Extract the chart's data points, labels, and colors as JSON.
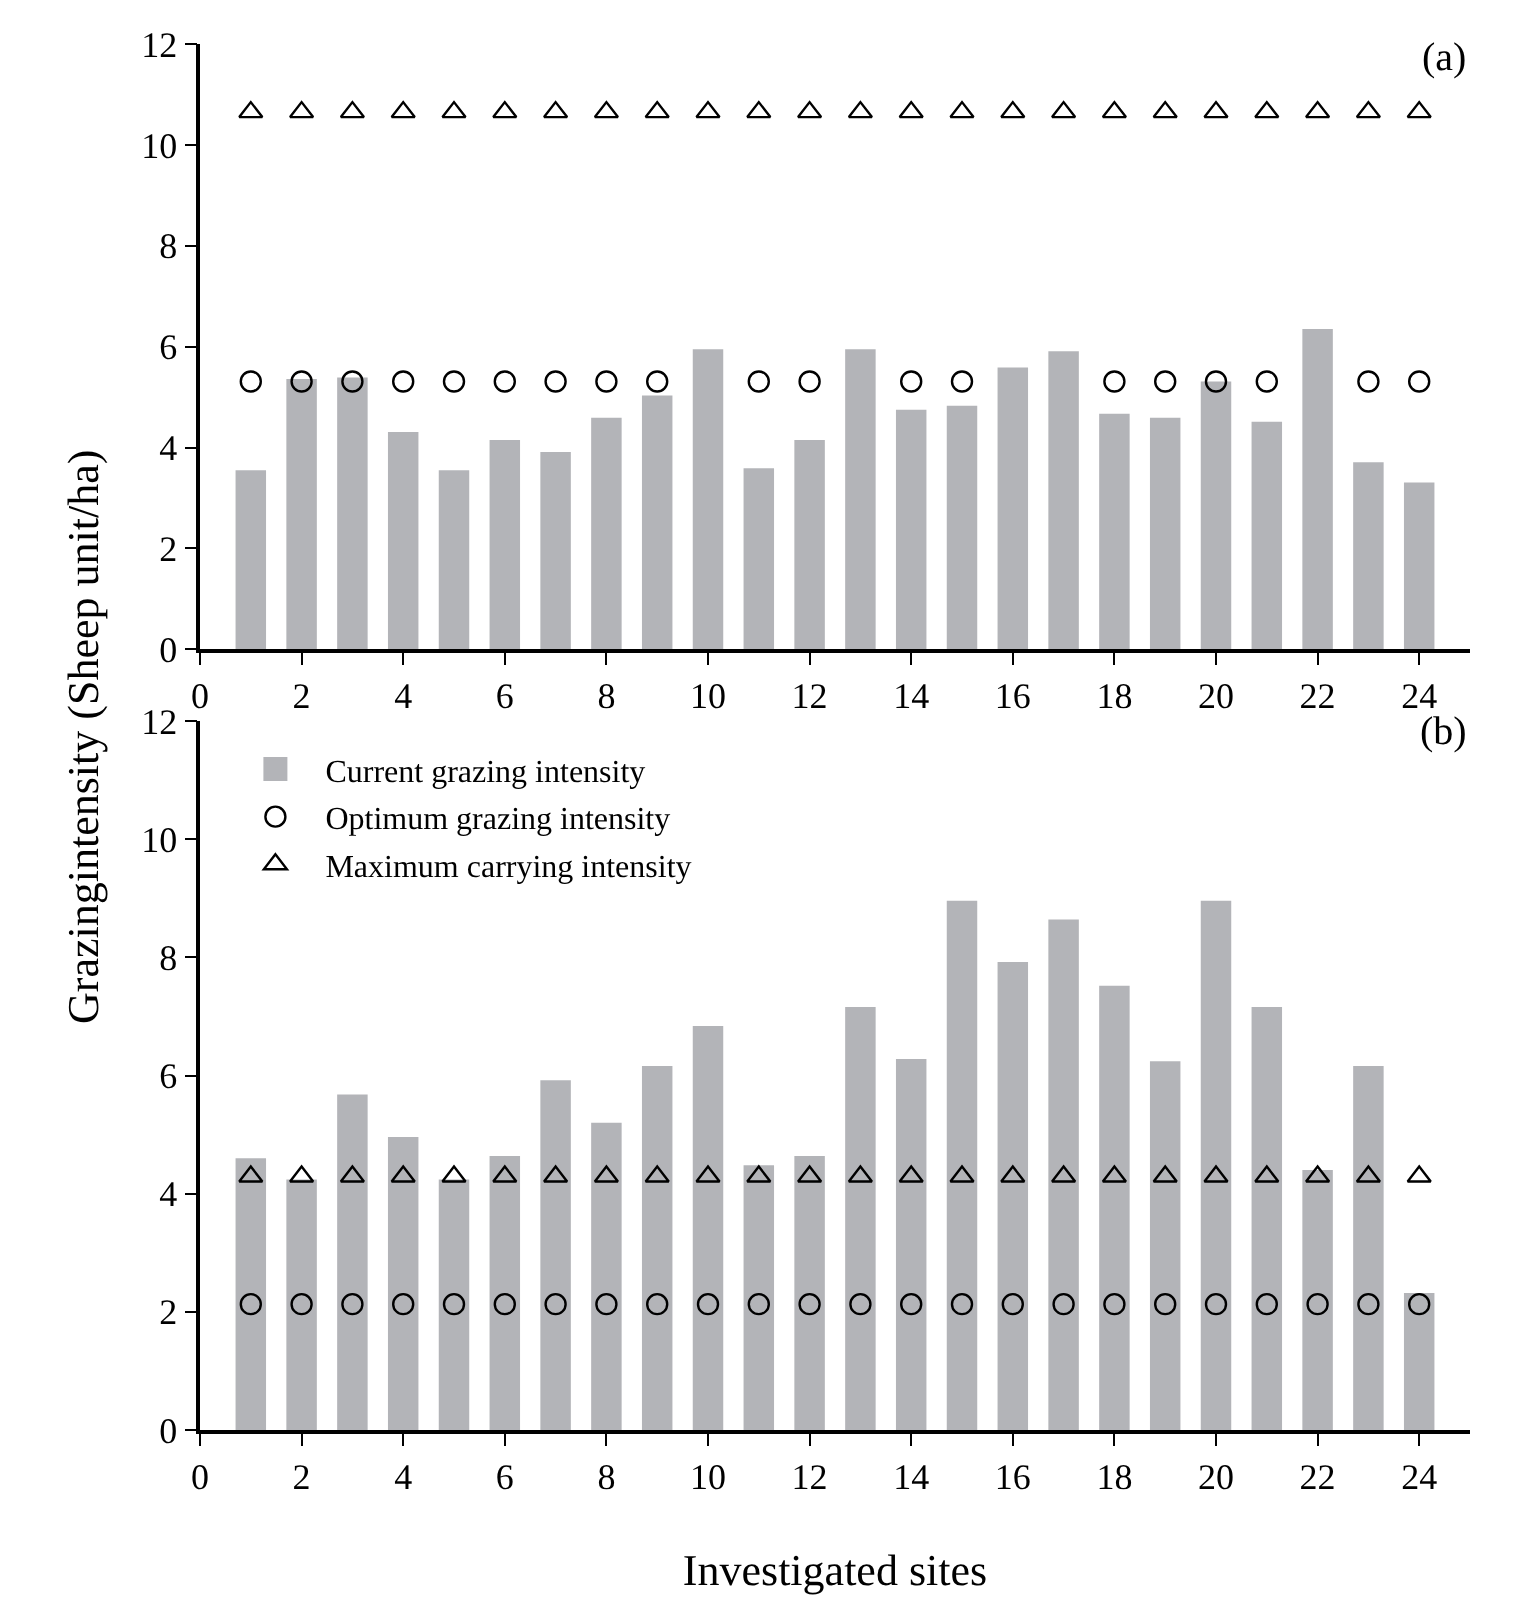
{
  "chart_data": [
    {
      "type": "bar",
      "ylabel": "Grazingintensity (Sheep unit/ha)",
      "annotations": [
        "(a)"
      ],
      "x": [
        1,
        2,
        3,
        4,
        5,
        6,
        7,
        8,
        9,
        10,
        11,
        12,
        13,
        14,
        15,
        16,
        17,
        18,
        19,
        20,
        21,
        22,
        23,
        24
      ],
      "xlim": [
        0,
        25
      ],
      "xticks": [
        0,
        2,
        4,
        6,
        8,
        10,
        12,
        14,
        16,
        18,
        20,
        22,
        24
      ],
      "ylim": [
        0,
        12
      ],
      "yticks": [
        0,
        2,
        4,
        6,
        8,
        10,
        12
      ],
      "legend": false,
      "series": [
        {
          "color": "#b3b4b8",
          "values": [
            3.55,
            5.36,
            5.39,
            4.31,
            3.55,
            4.15,
            3.91,
            4.59,
            5.03,
            5.95,
            3.59,
            4.15,
            5.95,
            4.75,
            4.83,
            5.59,
            5.91,
            4.67,
            4.59,
            5.31,
            4.51,
            6.35,
            3.71,
            3.31
          ]
        },
        {
          "type": "scatter",
          "marker": "circle",
          "color": "#000000",
          "values": [
            5.31,
            5.31,
            5.31,
            5.31,
            5.31,
            5.31,
            5.31,
            5.31,
            5.31,
            null,
            5.31,
            5.31,
            null,
            5.31,
            5.31,
            null,
            null,
            5.31,
            5.31,
            5.31,
            5.31,
            null,
            5.31,
            5.31
          ]
        },
        {
          "type": "scatter",
          "marker": "triangle",
          "color": "#000000",
          "values": [
            10.65,
            10.65,
            10.65,
            10.65,
            10.65,
            10.65,
            10.65,
            10.65,
            10.65,
            10.65,
            10.65,
            10.65,
            10.65,
            10.65,
            10.65,
            10.65,
            10.65,
            10.65,
            10.65,
            10.65,
            10.65,
            10.65,
            10.65,
            10.65
          ]
        }
      ]
    },
    {
      "type": "bar",
      "xlabel": "Investigated sites",
      "annotations": [
        "(b)"
      ],
      "x": [
        1,
        2,
        3,
        4,
        5,
        6,
        7,
        8,
        9,
        10,
        11,
        12,
        13,
        14,
        15,
        16,
        17,
        18,
        19,
        20,
        21,
        22,
        23,
        24
      ],
      "xlim": [
        0,
        25
      ],
      "xticks": [
        0,
        2,
        4,
        6,
        8,
        10,
        12,
        14,
        16,
        18,
        20,
        22,
        24
      ],
      "ylim": [
        0,
        12
      ],
      "yticks": [
        0,
        2,
        4,
        6,
        8,
        10,
        12
      ],
      "legend": "top left",
      "series": [
        {
          "name": "Current grazing intensity",
          "color": "#b3b4b8",
          "values": [
            4.6,
            4.24,
            5.68,
            4.96,
            4.24,
            4.64,
            5.92,
            5.2,
            6.16,
            6.84,
            4.48,
            4.64,
            7.16,
            6.28,
            8.96,
            7.92,
            8.64,
            7.52,
            6.24,
            8.96,
            7.16,
            4.4,
            6.16,
            2.32
          ]
        },
        {
          "type": "scatter",
          "name": "Optimum grazing intensity",
          "marker": "circle",
          "color": "#000000",
          "values": [
            2.13,
            2.13,
            2.13,
            2.13,
            2.13,
            2.13,
            2.13,
            2.13,
            2.13,
            2.13,
            2.13,
            2.13,
            2.13,
            2.13,
            2.13,
            2.13,
            2.13,
            2.13,
            2.13,
            2.13,
            2.13,
            2.13,
            2.13,
            2.13
          ]
        },
        {
          "type": "scatter",
          "name": "Maximum carrying intensity",
          "marker": "triangle",
          "color": "#000000",
          "values": [
            4.29,
            4.29,
            4.29,
            4.29,
            4.29,
            4.29,
            4.29,
            4.29,
            4.29,
            4.29,
            4.29,
            4.29,
            4.29,
            4.29,
            4.29,
            4.29,
            4.29,
            4.29,
            4.29,
            4.29,
            4.29,
            4.29,
            4.29,
            4.29
          ]
        }
      ]
    }
  ]
}
